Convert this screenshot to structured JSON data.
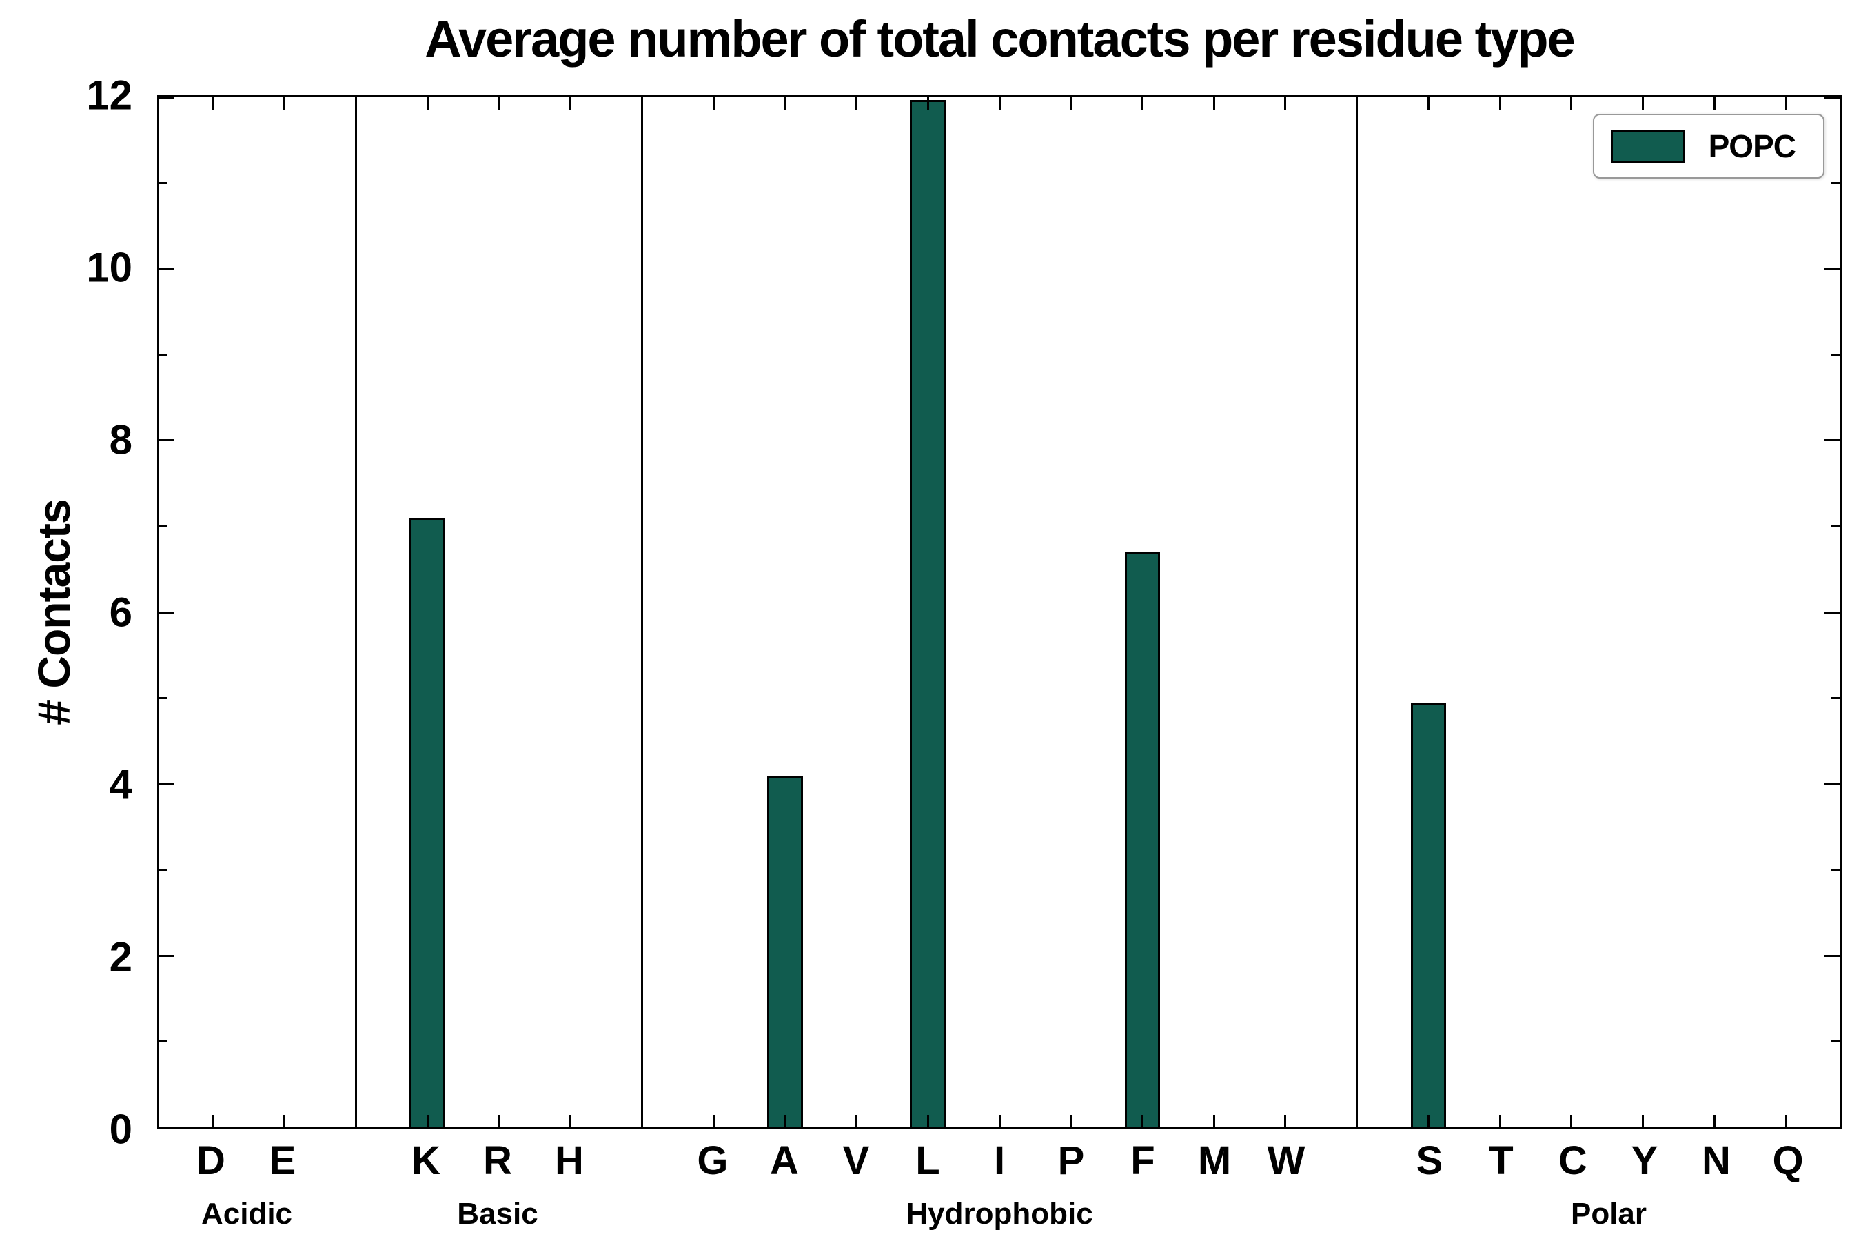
{
  "colors": {
    "bar": "#115c4f",
    "bar_edge": "#000000",
    "axis": "#000000"
  },
  "chart_data": {
    "type": "bar",
    "title": "Average number of total contacts per residue type",
    "xlabel": "",
    "ylabel": "# Contacts",
    "ylim": [
      0,
      12
    ],
    "yticks": [
      0,
      2,
      4,
      6,
      8,
      10,
      12
    ],
    "legend": [
      "POPC"
    ],
    "legend_position": "upper right",
    "grid": false,
    "groups": [
      {
        "label": "Acidic",
        "categories": [
          "D",
          "E"
        ],
        "values": [
          0,
          0
        ]
      },
      {
        "label": "Basic",
        "categories": [
          "K",
          "R",
          "H"
        ],
        "values": [
          7.1,
          0,
          0
        ]
      },
      {
        "label": "Hydrophobic",
        "categories": [
          "G",
          "A",
          "V",
          "L",
          "I",
          "P",
          "F",
          "M",
          "W"
        ],
        "values": [
          0,
          4.1,
          0,
          11.97,
          0,
          0,
          6.7,
          0,
          0
        ]
      },
      {
        "label": "Polar",
        "categories": [
          "S",
          "T",
          "C",
          "Y",
          "N",
          "Q"
        ],
        "values": [
          4.95,
          0,
          0,
          0,
          0,
          0
        ]
      }
    ]
  }
}
